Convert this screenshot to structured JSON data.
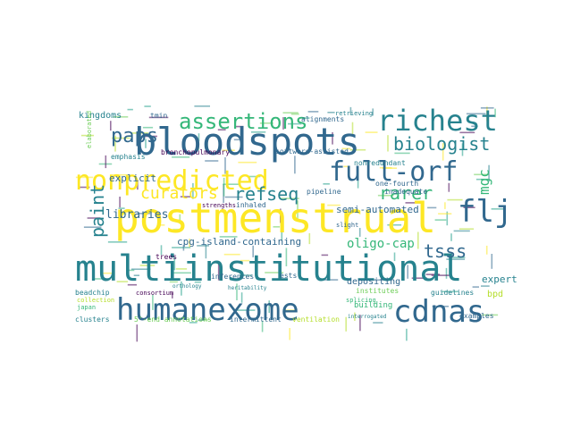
{
  "colors": {
    "background": "#ffffff",
    "palette": [
      "#440154",
      "#31688e",
      "#26828e",
      "#1f9e89",
      "#35b779",
      "#6ece58",
      "#b5de2b",
      "#fde725"
    ]
  },
  "words": [
    {
      "text": "postmenstrual",
      "color": "#fde725"
    },
    {
      "text": "multiinstitutional",
      "color": "#26828e"
    },
    {
      "text": "bloodspots",
      "color": "#31688e"
    },
    {
      "text": "humanexome",
      "color": "#31688e"
    },
    {
      "text": "nonpredicted",
      "color": "#fde725"
    },
    {
      "text": "full-orf",
      "color": "#31688e"
    },
    {
      "text": "richest",
      "color": "#26828e"
    },
    {
      "text": "cdnas",
      "color": "#31688e"
    },
    {
      "text": "assertions",
      "color": "#35b779"
    },
    {
      "text": "flj",
      "color": "#31688e"
    },
    {
      "text": "paps",
      "color": "#31688e"
    },
    {
      "text": "biologist",
      "color": "#26828e"
    },
    {
      "text": "curators",
      "color": "#fde725"
    },
    {
      "text": "refseq",
      "color": "#26828e"
    },
    {
      "text": "paint",
      "color": "#26828e"
    },
    {
      "text": "rarer",
      "color": "#35b779"
    },
    {
      "text": "tsss",
      "color": "#31688e"
    },
    {
      "text": "mgc",
      "color": "#35b779"
    },
    {
      "text": "oligo-cap",
      "color": "#35b779"
    },
    {
      "text": "libraries",
      "color": "#31688e"
    },
    {
      "text": "cpg-island-containing",
      "color": "#31688e"
    },
    {
      "text": "semi-automated",
      "color": "#31688e"
    },
    {
      "text": "explicit",
      "color": "#31688e"
    },
    {
      "text": "kingdoms",
      "color": "#26828e"
    },
    {
      "text": "expert",
      "color": "#26828e"
    },
    {
      "text": "bpd",
      "color": "#b5de2b"
    },
    {
      "text": "depositing",
      "color": "#31688e"
    },
    {
      "text": "guidelines",
      "color": "#26828e"
    },
    {
      "text": "building",
      "color": "#35b779"
    },
    {
      "text": "bronchopulmonary",
      "color": "#440154"
    },
    {
      "text": "software-assisted",
      "color": "#31688e"
    },
    {
      "text": "nonredundant",
      "color": "#26828e"
    },
    {
      "text": "inadequate",
      "color": "#31688e"
    },
    {
      "text": "one-fourth",
      "color": "#31688e"
    },
    {
      "text": "pipeline",
      "color": "#31688e"
    },
    {
      "text": "alignments",
      "color": "#31688e"
    },
    {
      "text": "retrieving",
      "color": "#26828e"
    },
    {
      "text": "tmin",
      "color": "#31688e"
    },
    {
      "text": "emphasis",
      "color": "#26828e"
    },
    {
      "text": "elaborated",
      "color": "#6ece58"
    },
    {
      "text": "strengths",
      "color": "#440154"
    },
    {
      "text": "inhaled",
      "color": "#31688e"
    },
    {
      "text": "inferences",
      "color": "#31688e"
    },
    {
      "text": "ests",
      "color": "#31688e"
    },
    {
      "text": "trees",
      "color": "#440154"
    },
    {
      "text": "institutes",
      "color": "#6ece58"
    },
    {
      "text": "slight",
      "color": "#31688e"
    },
    {
      "text": "beadchip",
      "color": "#26828e"
    },
    {
      "text": "consortium",
      "color": "#440154"
    },
    {
      "text": "collection",
      "color": "#b5de2b"
    },
    {
      "text": "japan",
      "color": "#35b779"
    },
    {
      "text": "clusters",
      "color": "#26828e"
    },
    {
      "text": "5'-end annotations",
      "color": "#6ece58"
    },
    {
      "text": "intermittent",
      "color": "#31688e"
    },
    {
      "text": "ventilation",
      "color": "#b5de2b"
    },
    {
      "text": "interrogated",
      "color": "#26828e"
    },
    {
      "text": "examples",
      "color": "#31688e"
    },
    {
      "text": "splicing",
      "color": "#35b779"
    },
    {
      "text": "heritability",
      "color": "#26828e"
    },
    {
      "text": "orthology",
      "color": "#26828e"
    }
  ]
}
